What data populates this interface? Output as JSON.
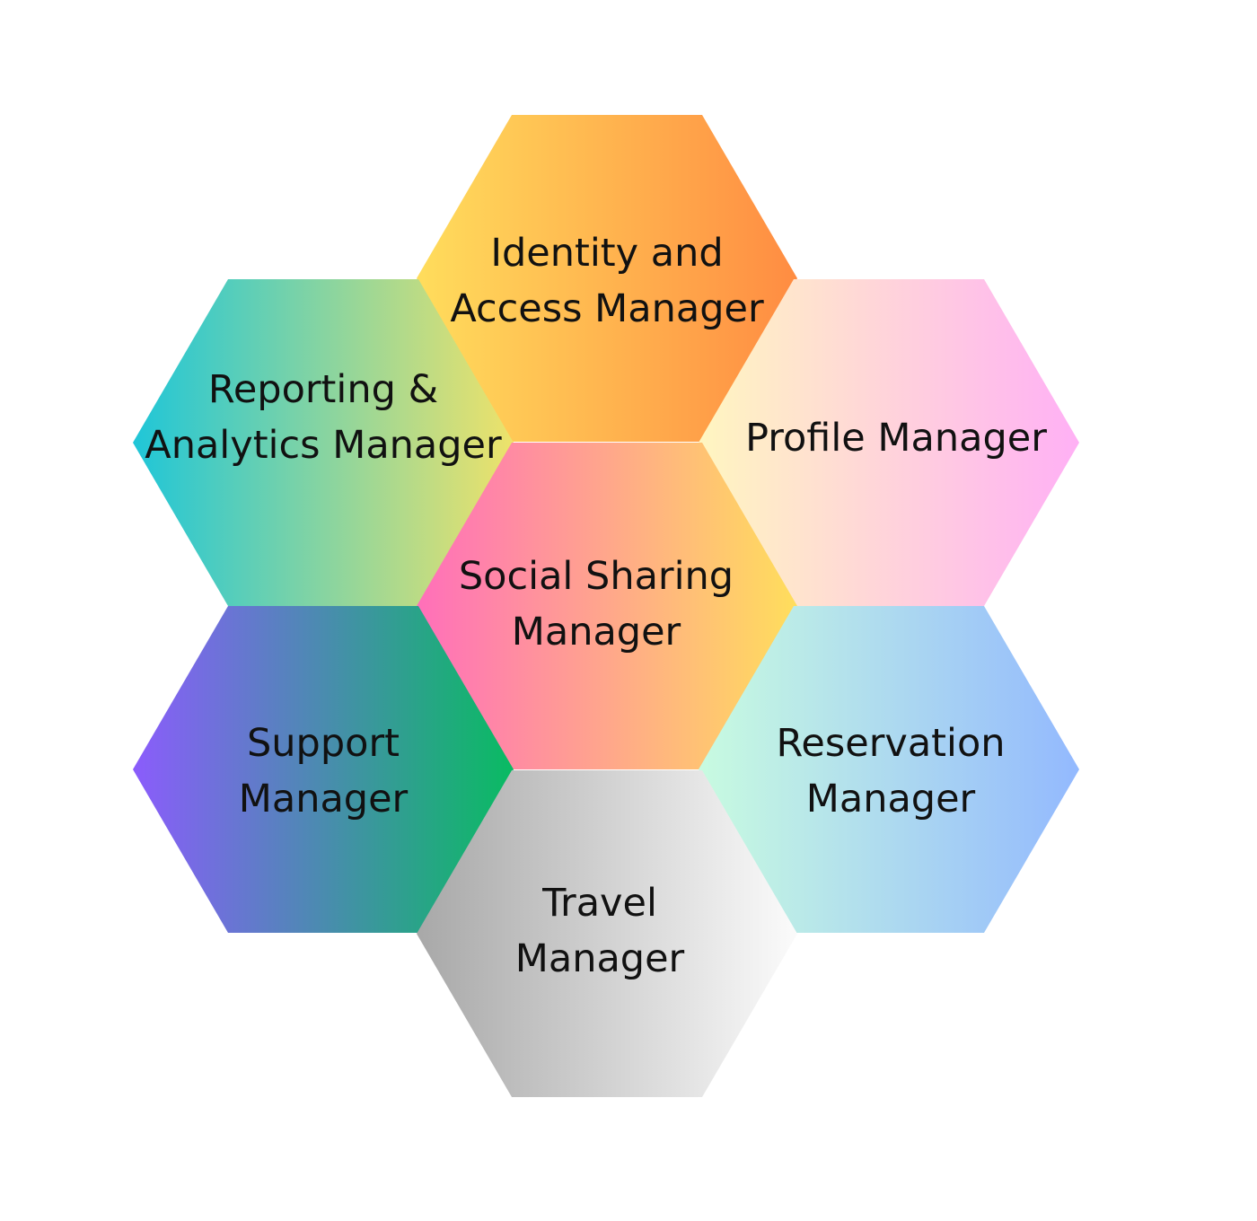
{
  "hexagons": [
    {
      "id": "identity-access",
      "lines": [
        "Identity and",
        "Access Manager"
      ],
      "gradient": [
        "#ffdd5c",
        "#ff8c42"
      ]
    },
    {
      "id": "reporting-analytics",
      "lines": [
        "Reporting &",
        "Analytics Manager"
      ],
      "gradient": [
        "#1fc6d8",
        "#eee26a"
      ]
    },
    {
      "id": "profile",
      "lines": [
        "Profile Manager"
      ],
      "gradient": [
        "#fff6c0",
        "#ffb0f5"
      ]
    },
    {
      "id": "social-sharing",
      "lines": [
        "Social Sharing",
        "Manager"
      ],
      "gradient": [
        "#ff6fba",
        "#ffde5c"
      ]
    },
    {
      "id": "support",
      "lines": [
        "Support",
        "Manager"
      ],
      "gradient": [
        "#8b5cfc",
        "#09bb62"
      ]
    },
    {
      "id": "reservation",
      "lines": [
        "Reservation",
        "Manager"
      ],
      "gradient": [
        "#c8fbe0",
        "#93b9fe"
      ]
    },
    {
      "id": "travel",
      "lines": [
        "Travel",
        "Manager"
      ],
      "gradient": [
        "#a8a8a8",
        "#fbfbfb"
      ]
    }
  ]
}
